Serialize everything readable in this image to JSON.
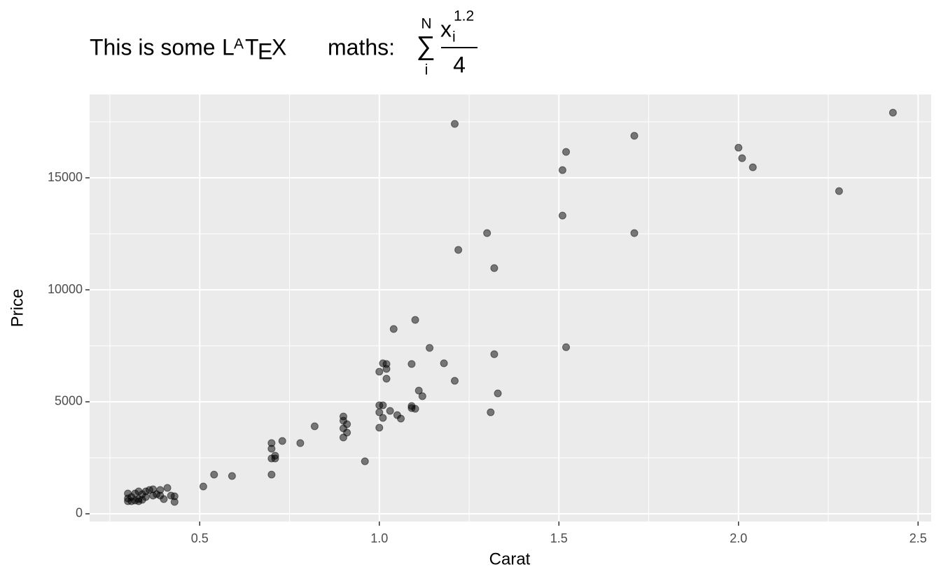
{
  "chart_data": {
    "type": "scatter",
    "title": {
      "text": "This is some",
      "logo": [
        "L",
        "A",
        "T",
        "E",
        "X"
      ],
      "after": "maths:",
      "sum": "∑",
      "sum_upper": "N",
      "sum_lower": "i",
      "numerator": "x",
      "subscript": "i",
      "exponent": "1.2",
      "denominator": "4"
    },
    "x_label": "Carat",
    "y_label": "Price",
    "xlim": [
      0.1935,
      2.5365
    ],
    "ylim": [
      -344,
      18719
    ],
    "xticks": [
      0.5,
      {
        "value": 1.0,
        "label": "1.0"
      },
      1.5,
      {
        "value": 2.0,
        "label": "2.0"
      },
      2.5
    ],
    "yticks": [
      0,
      5000,
      10000,
      15000
    ],
    "grid": true,
    "color": "#000000",
    "alpha": 0.5,
    "x": [
      2.43,
      1.21,
      1.71,
      1.52,
      2.0,
      2.01,
      1.51,
      2.04,
      2.28,
      1.51,
      1.3,
      1.71,
      1.22,
      1.32,
      1.1,
      1.04,
      1.52,
      1.14,
      1.32,
      1.01,
      1.02,
      1.18,
      1.09,
      1.0,
      1.02,
      1.02,
      1.21,
      1.11,
      1.33,
      1.12,
      1.0,
      1.01,
      1.09,
      1.09,
      1.1,
      1.0,
      1.03,
      1.05,
      1.06,
      1.01,
      1.31,
      0.9,
      0.9,
      0.91,
      0.9,
      0.82,
      1.0,
      0.91,
      0.9,
      0.73,
      0.7,
      0.78,
      0.7,
      0.71,
      0.7,
      0.71,
      0.96,
      0.7,
      0.54,
      0.59,
      0.51,
      0.41,
      0.37,
      0.39,
      0.35,
      0.36,
      0.33,
      0.3,
      0.32,
      0.34,
      0.38,
      0.39,
      0.37,
      0.42,
      0.43,
      0.31,
      0.35,
      0.3,
      0.33,
      0.32,
      0.31,
      0.43,
      0.4,
      0.3,
      0.34,
      0.33
    ],
    "y": [
      17906,
      17406,
      16875,
      16156,
      16344,
      15875,
      15344,
      15469,
      14406,
      13313,
      12531,
      12531,
      11781,
      10969,
      8656,
      8250,
      7438,
      7406,
      7125,
      6719,
      6688,
      6719,
      6688,
      6344,
      6469,
      6031,
      5938,
      5500,
      5375,
      5250,
      4844,
      4844,
      4813,
      4719,
      4688,
      4531,
      4594,
      4406,
      4250,
      4281,
      4531,
      4344,
      4156,
      4000,
      3813,
      3906,
      3844,
      3625,
      3406,
      3250,
      3156,
      3156,
      2906,
      2594,
      2469,
      2469,
      2344,
      1750,
      1750,
      1688,
      1219,
      1156,
      1094,
      1063,
      1000,
      1063,
      1000,
      906,
      906,
      875,
      875,
      813,
      813,
      813,
      781,
      750,
      750,
      688,
      656,
      594,
      563,
      531,
      656,
      563,
      625,
      563
    ]
  }
}
